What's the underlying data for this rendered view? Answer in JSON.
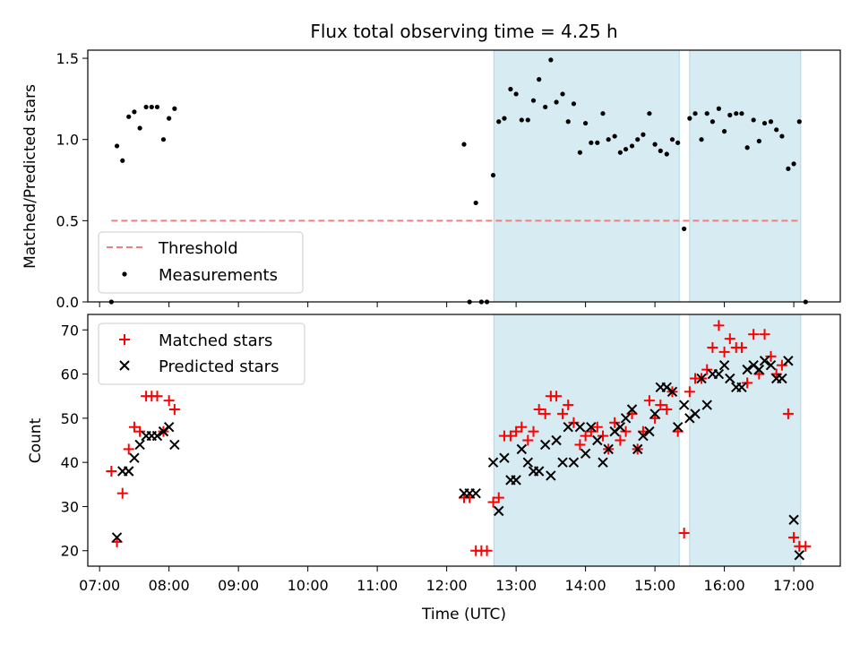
{
  "chart_data": {
    "type": "scatter",
    "title": "Flux total observing time = 4.25 h",
    "xlabel": "Time (UTC)",
    "x_units": "hours UTC",
    "xlim": [
      6.83,
      17.67
    ],
    "xticks": [
      {
        "v": 7,
        "label": "07:00"
      },
      {
        "v": 8,
        "label": "08:00"
      },
      {
        "v": 9,
        "label": "09:00"
      },
      {
        "v": 10,
        "label": "10:00"
      },
      {
        "v": 11,
        "label": "11:00"
      },
      {
        "v": 12,
        "label": "12:00"
      },
      {
        "v": 13,
        "label": "13:00"
      },
      {
        "v": 14,
        "label": "14:00"
      },
      {
        "v": 15,
        "label": "15:00"
      },
      {
        "v": 16,
        "label": "16:00"
      },
      {
        "v": 17,
        "label": "17:00"
      }
    ],
    "shaded_intervals": [
      [
        12.68,
        15.35
      ],
      [
        15.5,
        17.1
      ]
    ],
    "shade_color": "#add8e6",
    "top_panel": {
      "ylabel": "Matched/Predicted stars",
      "ylim": [
        0,
        1.55
      ],
      "yticks": [
        "0.0",
        "0.5",
        "1.0",
        "1.5"
      ],
      "threshold": {
        "name": "Threshold",
        "value": 0.5,
        "x_range": [
          7.17,
          17.1
        ],
        "color": "#f08080"
      },
      "measurements": {
        "name": "Measurements",
        "color": "#000000",
        "points": [
          [
            7.17,
            0.0
          ],
          [
            7.25,
            0.96
          ],
          [
            7.33,
            0.87
          ],
          [
            7.42,
            1.14
          ],
          [
            7.5,
            1.17
          ],
          [
            7.58,
            1.07
          ],
          [
            7.67,
            1.2
          ],
          [
            7.75,
            1.2
          ],
          [
            7.83,
            1.2
          ],
          [
            7.92,
            1.0
          ],
          [
            8.0,
            1.13
          ],
          [
            8.08,
            1.19
          ],
          [
            12.25,
            0.97
          ],
          [
            12.33,
            0.0
          ],
          [
            12.42,
            0.61
          ],
          [
            12.5,
            0.0
          ],
          [
            12.58,
            0.0
          ],
          [
            12.67,
            0.78
          ],
          [
            12.75,
            1.11
          ],
          [
            12.83,
            1.13
          ],
          [
            12.92,
            1.31
          ],
          [
            13.0,
            1.28
          ],
          [
            13.08,
            1.12
          ],
          [
            13.17,
            1.12
          ],
          [
            13.25,
            1.24
          ],
          [
            13.33,
            1.37
          ],
          [
            13.42,
            1.2
          ],
          [
            13.5,
            1.49
          ],
          [
            13.58,
            1.23
          ],
          [
            13.67,
            1.28
          ],
          [
            13.75,
            1.11
          ],
          [
            13.83,
            1.22
          ],
          [
            13.92,
            0.92
          ],
          [
            14.0,
            1.1
          ],
          [
            14.08,
            0.98
          ],
          [
            14.17,
            0.98
          ],
          [
            14.25,
            1.16
          ],
          [
            14.33,
            1.0
          ],
          [
            14.42,
            1.02
          ],
          [
            14.5,
            0.92
          ],
          [
            14.58,
            0.94
          ],
          [
            14.67,
            0.96
          ],
          [
            14.75,
            1.0
          ],
          [
            14.83,
            1.03
          ],
          [
            14.92,
            1.16
          ],
          [
            15.0,
            0.97
          ],
          [
            15.08,
            0.93
          ],
          [
            15.17,
            0.91
          ],
          [
            15.25,
            1.0
          ],
          [
            15.33,
            0.98
          ],
          [
            15.42,
            0.45
          ],
          [
            15.5,
            1.13
          ],
          [
            15.58,
            1.16
          ],
          [
            15.67,
            1.0
          ],
          [
            15.75,
            1.16
          ],
          [
            15.83,
            1.11
          ],
          [
            15.92,
            1.19
          ],
          [
            16.0,
            1.05
          ],
          [
            16.08,
            1.15
          ],
          [
            16.17,
            1.16
          ],
          [
            16.25,
            1.16
          ],
          [
            16.33,
            0.95
          ],
          [
            16.42,
            1.12
          ],
          [
            16.5,
            0.99
          ],
          [
            16.58,
            1.1
          ],
          [
            16.67,
            1.11
          ],
          [
            16.75,
            1.06
          ],
          [
            16.83,
            1.02
          ],
          [
            16.92,
            0.82
          ],
          [
            17.0,
            0.85
          ],
          [
            17.08,
            1.11
          ],
          [
            17.17,
            0.0
          ]
        ]
      },
      "legend": [
        "Threshold",
        "Measurements"
      ],
      "legend_loc": "lower-left"
    },
    "bottom_panel": {
      "ylabel": "Count",
      "ylim": [
        16.5,
        73.5
      ],
      "yticks": [
        "20",
        "30",
        "40",
        "50",
        "60",
        "70"
      ],
      "series": [
        {
          "name": "Matched stars",
          "marker": "plus",
          "color": "#ff0000",
          "points": [
            [
              7.17,
              38
            ],
            [
              7.25,
              22
            ],
            [
              7.33,
              33
            ],
            [
              7.42,
              43
            ],
            [
              7.5,
              48
            ],
            [
              7.58,
              47
            ],
            [
              7.67,
              55
            ],
            [
              7.75,
              55
            ],
            [
              7.83,
              55
            ],
            [
              7.92,
              47
            ],
            [
              8.0,
              54
            ],
            [
              8.08,
              52
            ],
            [
              12.25,
              32
            ],
            [
              12.33,
              32
            ],
            [
              12.42,
              20
            ],
            [
              12.5,
              20
            ],
            [
              12.58,
              20
            ],
            [
              12.67,
              31
            ],
            [
              12.75,
              32
            ],
            [
              12.83,
              46
            ],
            [
              12.92,
              46
            ],
            [
              13.0,
              47
            ],
            [
              13.08,
              48
            ],
            [
              13.17,
              45
            ],
            [
              13.25,
              47
            ],
            [
              13.33,
              52
            ],
            [
              13.42,
              51
            ],
            [
              13.5,
              55
            ],
            [
              13.58,
              55
            ],
            [
              13.67,
              51
            ],
            [
              13.75,
              53
            ],
            [
              13.83,
              49
            ],
            [
              13.92,
              44
            ],
            [
              14.0,
              46
            ],
            [
              14.08,
              47
            ],
            [
              14.17,
              48
            ],
            [
              14.25,
              46
            ],
            [
              14.33,
              43
            ],
            [
              14.42,
              49
            ],
            [
              14.5,
              45
            ],
            [
              14.58,
              47
            ],
            [
              14.67,
              51
            ],
            [
              14.75,
              43
            ],
            [
              14.83,
              47
            ],
            [
              14.92,
              54
            ],
            [
              15.0,
              50
            ],
            [
              15.08,
              53
            ],
            [
              15.17,
              52
            ],
            [
              15.25,
              56
            ],
            [
              15.33,
              47
            ],
            [
              15.42,
              24
            ],
            [
              15.5,
              56
            ],
            [
              15.58,
              59
            ],
            [
              15.67,
              59
            ],
            [
              15.75,
              61
            ],
            [
              15.83,
              66
            ],
            [
              15.92,
              71
            ],
            [
              16.0,
              65
            ],
            [
              16.08,
              68
            ],
            [
              16.17,
              66
            ],
            [
              16.25,
              66
            ],
            [
              16.33,
              58
            ],
            [
              16.42,
              69
            ],
            [
              16.5,
              60
            ],
            [
              16.58,
              69
            ],
            [
              16.67,
              64
            ],
            [
              16.75,
              60
            ],
            [
              16.83,
              62
            ],
            [
              16.92,
              51
            ],
            [
              17.0,
              23
            ],
            [
              17.08,
              21
            ],
            [
              17.17,
              21
            ]
          ]
        },
        {
          "name": "Predicted stars",
          "marker": "x",
          "color": "#000000",
          "points": [
            [
              7.25,
              23
            ],
            [
              7.33,
              38
            ],
            [
              7.42,
              38
            ],
            [
              7.5,
              41
            ],
            [
              7.58,
              44
            ],
            [
              7.67,
              46
            ],
            [
              7.75,
              46
            ],
            [
              7.83,
              46
            ],
            [
              7.92,
              47
            ],
            [
              8.0,
              48
            ],
            [
              8.08,
              44
            ],
            [
              12.25,
              33
            ],
            [
              12.33,
              33
            ],
            [
              12.42,
              33
            ],
            [
              12.67,
              40
            ],
            [
              12.75,
              29
            ],
            [
              12.83,
              41
            ],
            [
              12.92,
              36
            ],
            [
              13.0,
              36
            ],
            [
              13.08,
              43
            ],
            [
              13.17,
              40
            ],
            [
              13.25,
              38
            ],
            [
              13.33,
              38
            ],
            [
              13.42,
              44
            ],
            [
              13.5,
              37
            ],
            [
              13.58,
              45
            ],
            [
              13.67,
              40
            ],
            [
              13.75,
              48
            ],
            [
              13.83,
              40
            ],
            [
              13.92,
              48
            ],
            [
              14.0,
              42
            ],
            [
              14.08,
              48
            ],
            [
              14.17,
              45
            ],
            [
              14.25,
              40
            ],
            [
              14.33,
              43
            ],
            [
              14.42,
              47
            ],
            [
              14.5,
              48
            ],
            [
              14.58,
              50
            ],
            [
              14.67,
              52
            ],
            [
              14.75,
              43
            ],
            [
              14.83,
              46
            ],
            [
              14.92,
              47
            ],
            [
              15.0,
              51
            ],
            [
              15.08,
              57
            ],
            [
              15.17,
              57
            ],
            [
              15.25,
              56
            ],
            [
              15.33,
              48
            ],
            [
              15.42,
              53
            ],
            [
              15.5,
              50
            ],
            [
              15.58,
              51
            ],
            [
              15.67,
              59
            ],
            [
              15.75,
              53
            ],
            [
              15.83,
              60
            ],
            [
              15.92,
              60
            ],
            [
              16.0,
              62
            ],
            [
              16.08,
              59
            ],
            [
              16.17,
              57
            ],
            [
              16.25,
              57
            ],
            [
              16.33,
              61
            ],
            [
              16.42,
              62
            ],
            [
              16.5,
              61
            ],
            [
              16.58,
              63
            ],
            [
              16.67,
              62
            ],
            [
              16.75,
              59
            ],
            [
              16.83,
              59
            ],
            [
              16.92,
              63
            ],
            [
              17.0,
              27
            ],
            [
              17.08,
              19
            ]
          ]
        }
      ],
      "legend": [
        "Matched stars",
        "Predicted stars"
      ],
      "legend_loc": "upper-left"
    }
  }
}
